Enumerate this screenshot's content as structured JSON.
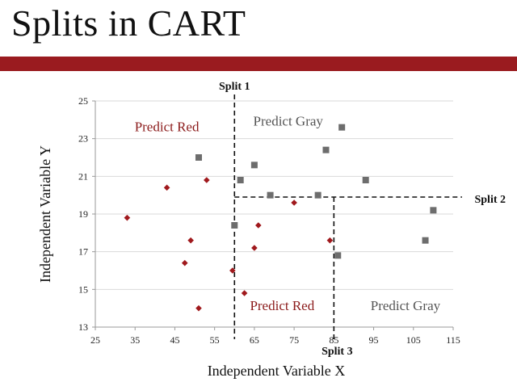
{
  "slide": {
    "title": "Splits in CART",
    "bar_color": "#9a1b1f"
  },
  "chart_data": {
    "type": "scatter",
    "title": "",
    "xlabel": "Independent Variable X",
    "ylabel": "Independent Variable Y",
    "xlim": [
      25,
      115
    ],
    "ylim": [
      13,
      25
    ],
    "x_ticks": [
      25,
      35,
      45,
      55,
      65,
      75,
      85,
      95,
      105,
      115
    ],
    "y_ticks": [
      13,
      15,
      17,
      19,
      21,
      23,
      25
    ],
    "grid": "horizontal",
    "legend": "none",
    "colors": {
      "red": "#a0191d",
      "gray": "#6d6d6d",
      "region_red": "#8b1a1a",
      "region_gray": "#555555",
      "grid": "#d9d9d9"
    },
    "series": [
      {
        "name": "",
        "marker": "diamond",
        "color": "#a0191d",
        "points": [
          [
            33,
            18.8
          ],
          [
            43,
            20.4
          ],
          [
            47.5,
            16.4
          ],
          [
            49,
            17.6
          ],
          [
            51,
            14
          ],
          [
            53,
            20.8
          ],
          [
            59.5,
            16
          ],
          [
            62.5,
            14.8
          ],
          [
            65,
            17.2
          ],
          [
            66,
            18.4
          ],
          [
            75,
            19.6
          ],
          [
            84,
            17.6
          ]
        ]
      },
      {
        "name": "",
        "marker": "square",
        "color": "#6d6d6d",
        "points": [
          [
            51,
            22
          ],
          [
            60,
            18.4
          ],
          [
            61.5,
            20.8
          ],
          [
            65,
            21.6
          ],
          [
            69,
            20
          ],
          [
            81,
            20
          ],
          [
            83,
            22.4
          ],
          [
            86,
            16.8
          ],
          [
            87,
            23.6
          ],
          [
            93,
            20.8
          ],
          [
            108,
            17.6
          ],
          [
            110,
            19.2
          ]
        ]
      }
    ],
    "splits": [
      {
        "label": "Split 1",
        "orientation": "vertical",
        "value": 60,
        "from": 13,
        "to": 25
      },
      {
        "label": "Split 2",
        "orientation": "horizontal",
        "value": 19.9,
        "from": 60,
        "to": 115
      },
      {
        "label": "Split 3",
        "orientation": "vertical",
        "value": 85,
        "from": 13,
        "to": 19.9
      }
    ],
    "regions": [
      {
        "label": "Predict Red",
        "color": "red",
        "x": 43,
        "y": 23.4
      },
      {
        "label": "Predict Gray",
        "color": "gray",
        "x": 73.5,
        "y": 23.7
      },
      {
        "label": "Predict Red",
        "color": "red",
        "x": 72,
        "y": 13.9
      },
      {
        "label": "Predict Gray",
        "color": "gray",
        "x": 103,
        "y": 13.9
      }
    ]
  }
}
